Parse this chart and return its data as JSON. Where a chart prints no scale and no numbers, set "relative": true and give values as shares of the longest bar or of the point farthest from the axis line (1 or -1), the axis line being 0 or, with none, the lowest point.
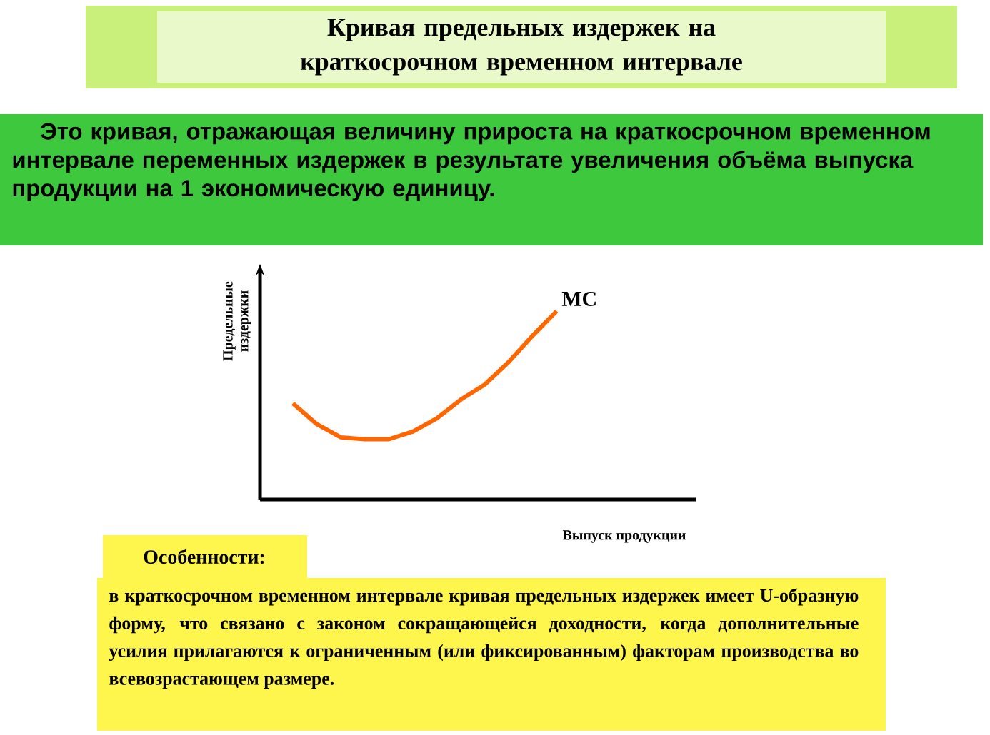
{
  "chart_data": {
    "type": "line",
    "title": "Кривая предельных издержек на краткосрочном временном интервале",
    "subtitle": "Это кривая, отражающая величину прироста на краткосрочном временном интервале переменных издержек в результате увеличения объёма выпуска продукции на 1 экономическую единицу.",
    "ylabel": "Предельные издержки",
    "xlabel": "Выпуск продукции",
    "relative": true,
    "marker": "none",
    "categories": [
      null,
      null,
      null,
      null,
      null,
      null,
      null,
      null,
      null,
      null,
      null,
      null
    ],
    "series": [
      {
        "name": "MC",
        "color": "#ff6600",
        "values": [
          0.51,
          0.4,
          0.33,
          0.32,
          0.32,
          0.36,
          0.43,
          0.53,
          0.61,
          0.73,
          0.87,
          1
        ]
      }
    ],
    "annotations": [
      "Особенности:",
      "в краткосрочном временном интервале кривая предельных издержек имеет U-образную форму, что связано с законом сокращающейся доходности, когда дополнительные усилия прилагаются к ограниченным (или фиксированным) факторам производства во всевозрастающем размере."
    ]
  }
}
